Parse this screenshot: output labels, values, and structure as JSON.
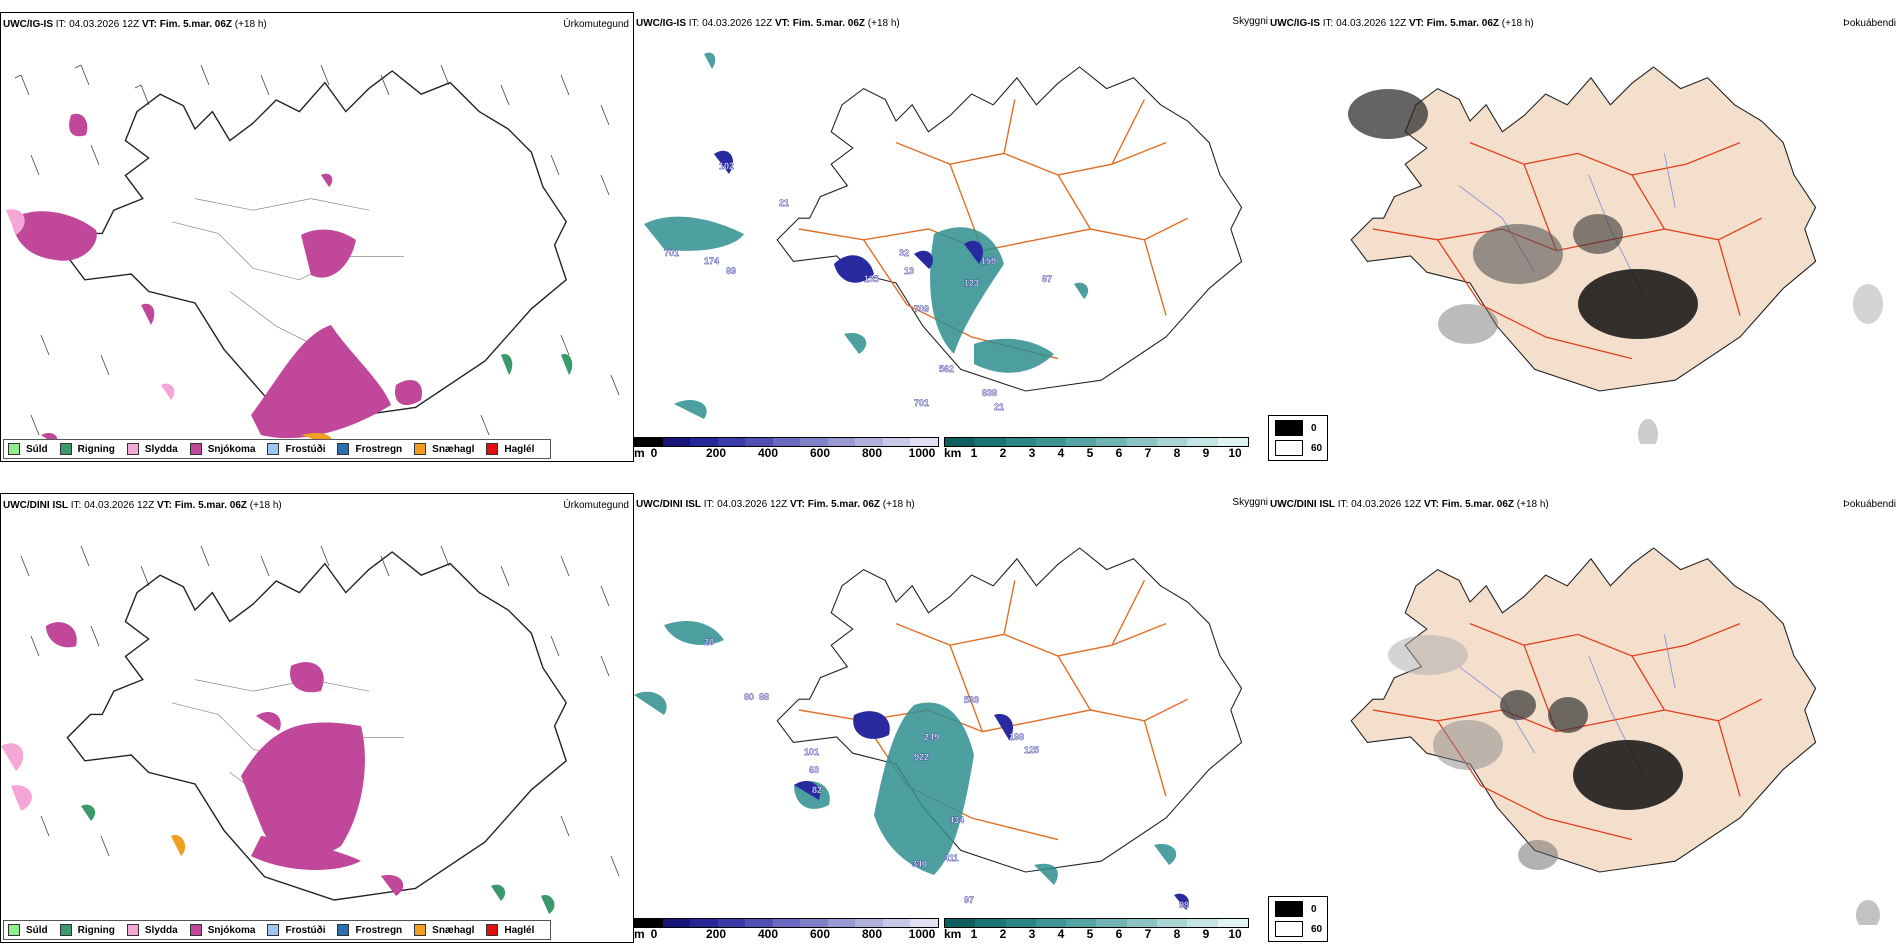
{
  "rows": [
    {
      "model": "UWC/IG-IS",
      "it_label": "IT:",
      "it_value": "04.03.2026 12Z",
      "vt_label": "VT:",
      "vt_value": "Fim. 5.mar. 06Z",
      "lead": "(+18 h)"
    },
    {
      "model": "UWC/DINI ISL",
      "it_label": "IT:",
      "it_value": "04.03.2026 12Z",
      "vt_label": "VT:",
      "vt_value": "Fim. 5.mar. 06Z",
      "lead": "(+18 h)"
    }
  ],
  "panel_labels": {
    "precip": "Úrkomutegund",
    "ceiling": "Skyggni",
    "fog": "Þokuábendi"
  },
  "precip_legend": [
    {
      "label": "Súld",
      "color": "#90ee90"
    },
    {
      "label": "Rigning",
      "color": "#3a9a6a"
    },
    {
      "label": "Slydda",
      "color": "#f4a6d7"
    },
    {
      "label": "Snjókoma",
      "color": "#c0479a"
    },
    {
      "label": "Frostúði",
      "color": "#9ac8f0"
    },
    {
      "label": "Frostregn",
      "color": "#2a70b0"
    },
    {
      "label": "Snæhagl",
      "color": "#f0a020"
    },
    {
      "label": "Haglél",
      "color": "#e01010"
    }
  ],
  "height_bar": {
    "unit": "m",
    "ticks": [
      "0",
      "200",
      "400",
      "600",
      "800",
      "1000"
    ],
    "colors": [
      "#000000",
      "#15157a",
      "#262696",
      "#3a3aa8",
      "#5050b4",
      "#6a6ac0",
      "#8080c8",
      "#9898d2",
      "#b0b0dc",
      "#c8c8e8",
      "#e0e0f2"
    ]
  },
  "vis_bar": {
    "unit": "km",
    "ticks": [
      "1",
      "2",
      "3",
      "4",
      "5",
      "6",
      "7",
      "8",
      "9",
      "10"
    ],
    "colors": [
      "#0f5f5f",
      "#1a7575",
      "#2a8585",
      "#3f9494",
      "#56a3a3",
      "#70b3b3",
      "#8cc4c4",
      "#a8d4d4",
      "#c4e4e4",
      "#e0f2f2"
    ]
  },
  "fog_legend": [
    {
      "value": "0",
      "color": "#000000"
    },
    {
      "value": "60",
      "color": "#ffffff"
    }
  ],
  "colors": {
    "land": "#f3dfcc",
    "roads": "#e07028",
    "rivers": "#7f92d8",
    "teal": "#2f8f8f",
    "navy": "#2a2aa0"
  },
  "ceiling_labels_top": [
    "102",
    "21",
    "1",
    "701",
    "174",
    "89",
    "135",
    "32",
    "13",
    "123",
    "159",
    "709",
    "562",
    "838",
    "701",
    "87",
    "21"
  ],
  "ceiling_labels_bottom": [
    "28",
    "80",
    "88",
    "533",
    "249",
    "922",
    "198",
    "125",
    "101",
    "63",
    "82",
    "434",
    "340",
    "411",
    "97",
    "98"
  ]
}
